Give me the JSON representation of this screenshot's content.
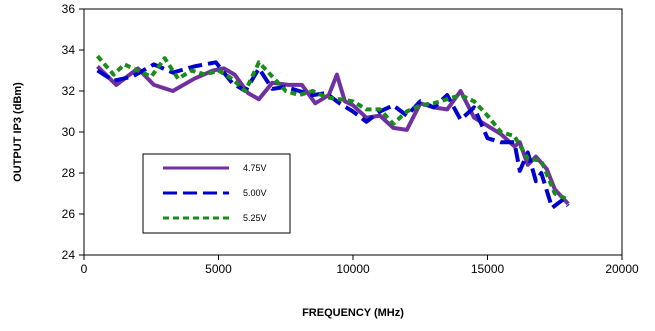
{
  "chart_data": {
    "type": "line",
    "title": "",
    "xlabel": "FREQUENCY (MHz)",
    "ylabel": "OUTPUT IP3 (dBm)",
    "xlim": [
      0,
      20000
    ],
    "ylim": [
      24,
      36
    ],
    "xticks": [
      0,
      5000,
      10000,
      15000,
      20000
    ],
    "yticks": [
      24,
      26,
      28,
      30,
      32,
      34,
      36
    ],
    "grid": false,
    "legend_position": "lower-left inside",
    "series": [
      {
        "name": "4.75V",
        "color": "#7030A0",
        "dash": "solid",
        "x": [
          500,
          1200,
          2000,
          2600,
          3300,
          4100,
          4800,
          5200,
          5600,
          6100,
          6500,
          7000,
          7600,
          8100,
          8600,
          9100,
          9400,
          9700,
          10000,
          10500,
          11000,
          11500,
          12000,
          12500,
          13000,
          13500,
          14000,
          14500,
          15000,
          15500,
          16000,
          16200,
          16500,
          16800,
          17200,
          17500,
          18000
        ],
        "y": [
          33.2,
          32.3,
          33.1,
          32.3,
          32.0,
          32.6,
          33.0,
          33.1,
          32.8,
          31.9,
          31.6,
          32.4,
          32.3,
          32.3,
          31.4,
          31.8,
          32.8,
          31.5,
          31.3,
          30.7,
          30.8,
          30.2,
          30.1,
          31.4,
          31.2,
          31.1,
          32.0,
          30.7,
          30.3,
          29.9,
          29.3,
          29.5,
          28.4,
          28.8,
          28.2,
          27.2,
          26.5
        ]
      },
      {
        "name": "5.00V",
        "color": "#0000CC",
        "dash": "long-dash",
        "x": [
          500,
          1100,
          1800,
          2600,
          3300,
          4100,
          4900,
          5500,
          6000,
          6500,
          7000,
          7500,
          8000,
          8500,
          9000,
          9500,
          10000,
          10500,
          11000,
          11500,
          12000,
          12500,
          13000,
          13500,
          14000,
          14500,
          15000,
          15500,
          16000,
          16200,
          16500,
          16800,
          17000,
          17400,
          17800,
          18000
        ],
        "y": [
          33.0,
          32.5,
          32.7,
          33.3,
          32.9,
          33.2,
          33.4,
          32.4,
          32.0,
          33.1,
          32.1,
          32.2,
          32.0,
          31.8,
          31.9,
          31.4,
          31.0,
          30.5,
          31.0,
          31.3,
          30.8,
          31.5,
          31.2,
          31.8,
          30.6,
          31.2,
          29.7,
          29.5,
          29.5,
          28.1,
          29.0,
          27.6,
          28.0,
          26.3,
          26.7,
          26.4
        ]
      },
      {
        "name": "5.25V",
        "color": "#1A8C1A",
        "dash": "short-dash",
        "x": [
          500,
          1100,
          1500,
          2000,
          2500,
          3000,
          3500,
          4000,
          4500,
          5000,
          5500,
          6000,
          6500,
          7000,
          7500,
          8000,
          8500,
          9000,
          9500,
          10000,
          10500,
          11000,
          11500,
          12000,
          12500,
          13000,
          13500,
          14000,
          14500,
          15000,
          15500,
          16000,
          16500,
          17000,
          17500,
          18000
        ],
        "y": [
          33.7,
          32.8,
          33.3,
          33.0,
          32.7,
          33.6,
          32.6,
          33.0,
          32.8,
          33.0,
          32.6,
          32.0,
          33.4,
          32.7,
          32.0,
          31.8,
          32.0,
          31.7,
          31.6,
          31.5,
          31.1,
          31.1,
          30.4,
          31.0,
          31.3,
          31.4,
          31.6,
          31.8,
          31.5,
          30.8,
          30.0,
          29.8,
          28.7,
          28.6,
          27.0,
          26.7
        ]
      }
    ]
  }
}
